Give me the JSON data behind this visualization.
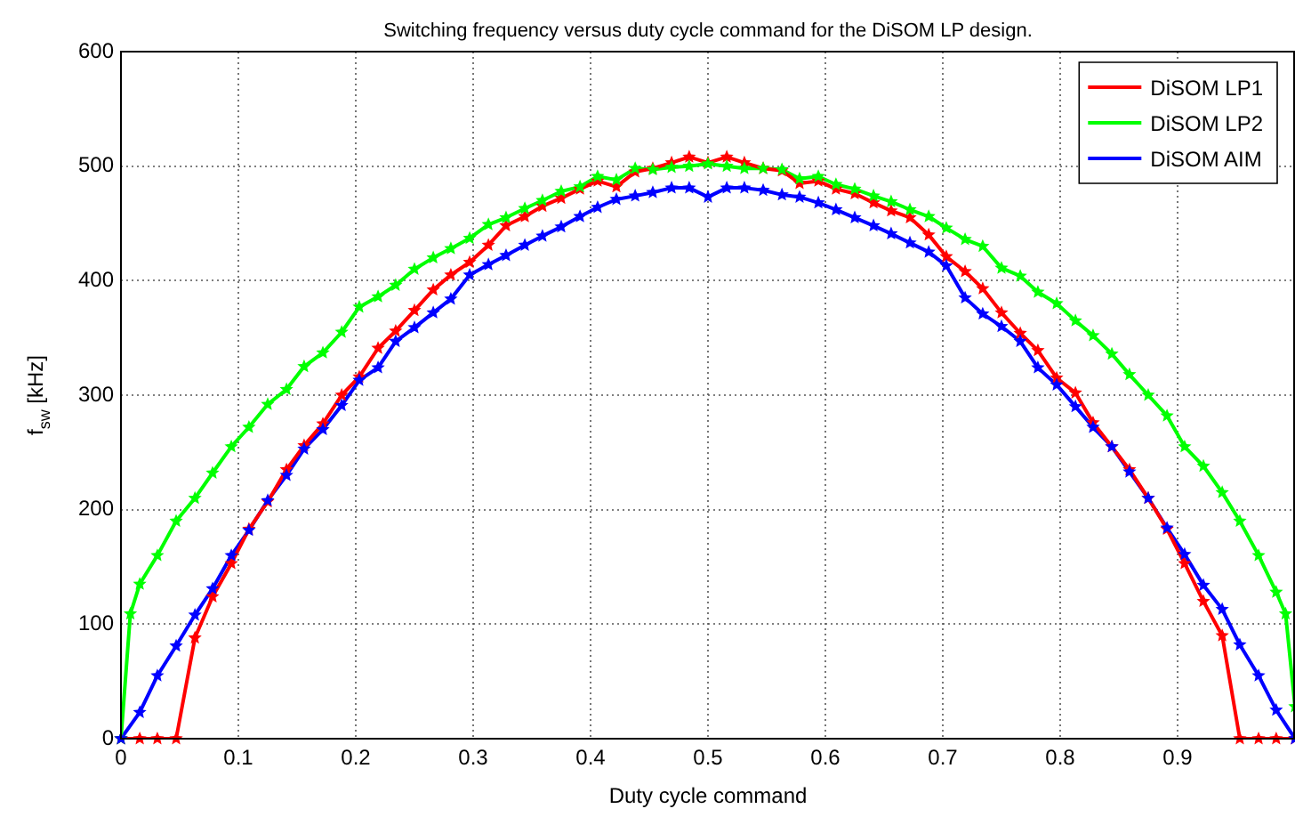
{
  "chart_data": {
    "type": "line",
    "title": "Switching frequency versus duty cycle command for the DiSOM LP design.",
    "xlabel": "Duty cycle command",
    "ylabel": "f$_{sw}$ [kHz]",
    "x": [
      0,
      0.016,
      0.031,
      0.047,
      0.063,
      0.078,
      0.094,
      0.109,
      0.125,
      0.141,
      0.156,
      0.172,
      0.188,
      0.203,
      0.219,
      0.234,
      0.25,
      0.266,
      0.281,
      0.297,
      0.313,
      0.328,
      0.344,
      0.359,
      0.375,
      0.391,
      0.406,
      0.422,
      0.438,
      0.453,
      0.469,
      0.484,
      0.5,
      0.516,
      0.531,
      0.547,
      0.563,
      0.578,
      0.594,
      0.609,
      0.625,
      0.641,
      0.656,
      0.672,
      0.688,
      0.703,
      0.719,
      0.734,
      0.75,
      0.766,
      0.781,
      0.797,
      0.813,
      0.828,
      0.844,
      0.859,
      0.875,
      0.891,
      0.906,
      0.922,
      0.938,
      0.953,
      0.969,
      0.984,
      1
    ],
    "series": [
      {
        "name": "DiSOM LP1",
        "color": "#ff0000",
        "values": [
          0,
          0,
          0,
          0,
          88,
          124,
          153,
          183,
          207,
          235,
          256,
          275,
          300,
          316,
          341,
          356,
          374,
          392,
          405,
          416,
          431,
          448,
          456,
          465,
          472,
          480,
          487,
          482,
          495,
          498,
          503,
          508,
          503,
          508,
          503,
          498,
          496,
          485,
          487,
          480,
          476,
          468,
          461,
          455,
          440,
          421,
          408,
          393,
          372,
          354,
          339,
          315,
          302,
          276,
          255,
          235,
          210,
          183,
          153,
          120,
          90,
          0,
          0,
          0,
          0
        ]
      },
      {
        "name": "DiSOM LP2",
        "color": "#00ff00",
        "x": [
          0,
          0.008,
          0.016,
          0.031,
          0.047,
          0.063,
          0.078,
          0.094,
          0.109,
          0.125,
          0.141,
          0.156,
          0.172,
          0.188,
          0.203,
          0.219,
          0.234,
          0.25,
          0.266,
          0.281,
          0.297,
          0.313,
          0.328,
          0.344,
          0.359,
          0.375,
          0.391,
          0.406,
          0.422,
          0.438,
          0.453,
          0.469,
          0.484,
          0.5,
          0.516,
          0.531,
          0.547,
          0.563,
          0.578,
          0.594,
          0.609,
          0.625,
          0.641,
          0.656,
          0.672,
          0.688,
          0.703,
          0.719,
          0.734,
          0.75,
          0.766,
          0.781,
          0.797,
          0.813,
          0.828,
          0.844,
          0.859,
          0.875,
          0.891,
          0.906,
          0.922,
          0.938,
          0.953,
          0.969,
          0.984,
          0.992,
          1
        ],
        "values": [
          0,
          109,
          135,
          160,
          190,
          210,
          232,
          255,
          272,
          292,
          305,
          325,
          337,
          355,
          377,
          386,
          396,
          410,
          420,
          428,
          437,
          449,
          455,
          463,
          470,
          478,
          482,
          491,
          488,
          498,
          497,
          499,
          500,
          502,
          500,
          498,
          498,
          497,
          489,
          491,
          484,
          480,
          474,
          469,
          462,
          456,
          446,
          436,
          430,
          411,
          404,
          390,
          380,
          365,
          352,
          336,
          318,
          300,
          282,
          255,
          238,
          215,
          190,
          160,
          128,
          109,
          28
        ]
      },
      {
        "name": "DiSOM AIM",
        "color": "#0000ff",
        "values": [
          0,
          23,
          55,
          81,
          108,
          131,
          160,
          182,
          208,
          230,
          253,
          270,
          291,
          313,
          324,
          347,
          359,
          372,
          384,
          405,
          414,
          422,
          431,
          439,
          447,
          456,
          464,
          471,
          474,
          477,
          481,
          481,
          473,
          481,
          481,
          479,
          475,
          473,
          468,
          462,
          455,
          448,
          441,
          433,
          425,
          413,
          385,
          371,
          360,
          347,
          324,
          309,
          290,
          272,
          255,
          233,
          210,
          184,
          161,
          134,
          113,
          82,
          55,
          25,
          0
        ]
      }
    ],
    "xlim": [
      0,
      1
    ],
    "xticks": [
      0,
      0.1,
      0.2,
      0.3,
      0.4,
      0.5,
      0.6,
      0.7,
      0.8,
      0.9
    ],
    "ylim": [
      0,
      600
    ],
    "yticks": [
      0,
      100,
      200,
      300,
      400,
      500,
      600
    ],
    "grid": true,
    "legend": "top right",
    "marker": "star",
    "line_style": "solid"
  }
}
